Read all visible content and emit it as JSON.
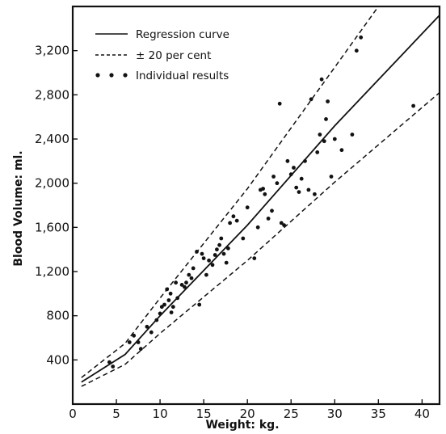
{
  "chart_data": {
    "type": "scatter",
    "title": "",
    "xlabel": "Weight: kg.",
    "ylabel": "Blood Volume: ml.",
    "xlim": [
      0,
      42
    ],
    "ylim": [
      0,
      3600
    ],
    "x_ticks": [
      0,
      5,
      10,
      15,
      20,
      25,
      30,
      35,
      40
    ],
    "x_tick_labels": [
      "0",
      "5",
      "10",
      "15",
      "20",
      "25",
      "30",
      "35",
      "40"
    ],
    "y_ticks": [
      400,
      800,
      1200,
      1600,
      2000,
      2400,
      2800,
      3200
    ],
    "y_tick_labels": [
      "400",
      "800",
      "1,200",
      "1,600",
      "2,000",
      "2,400",
      "2,800",
      "3,200"
    ],
    "grid": false,
    "legend_position": "top-left",
    "series": [
      {
        "name": "Regression curve",
        "style": "solid",
        "x": [
          1,
          6,
          10,
          20,
          30,
          42
        ],
        "y": [
          200,
          450,
          800,
          1620,
          2520,
          3520
        ]
      },
      {
        "name": "± 20 per cent",
        "style": "dashed",
        "x": [
          1,
          6,
          10,
          20,
          30,
          35
        ],
        "y": [
          240,
          550,
          960,
          1950,
          3050,
          3600
        ]
      },
      {
        "name": "± 20 per cent (lower)",
        "style": "dashed",
        "x": [
          1,
          6,
          10,
          20,
          30,
          42
        ],
        "y": [
          160,
          360,
          640,
          1300,
          2010,
          2820
        ]
      },
      {
        "name": "Individual results",
        "style": "points",
        "x": [
          4.2,
          4.6,
          6.5,
          7.0,
          7.5,
          7.8,
          8.5,
          9.0,
          9.6,
          10.0,
          10.2,
          10.5,
          10.8,
          11.0,
          11.2,
          11.3,
          11.5,
          11.8,
          12.0,
          12.5,
          12.8,
          13.0,
          13.3,
          13.6,
          13.8,
          14.2,
          14.5,
          14.8,
          15.0,
          15.3,
          15.6,
          16.0,
          16.3,
          16.5,
          16.8,
          17.0,
          17.3,
          17.6,
          17.8,
          18.0,
          18.4,
          18.8,
          19.5,
          20.0,
          20.8,
          21.2,
          21.5,
          21.8,
          22.0,
          22.4,
          22.8,
          23.0,
          23.4,
          23.7,
          23.9,
          24.2,
          24.6,
          25.0,
          25.3,
          25.6,
          25.9,
          26.2,
          26.6,
          27.0,
          27.3,
          27.7,
          28.0,
          28.3,
          28.5,
          28.8,
          29.0,
          29.2,
          29.6,
          30.0,
          30.8,
          32.0,
          32.5,
          33.0,
          39.0
        ],
        "y": [
          380,
          340,
          560,
          620,
          560,
          500,
          700,
          650,
          760,
          820,
          880,
          900,
          1040,
          940,
          1000,
          830,
          880,
          1100,
          960,
          1080,
          1060,
          1100,
          1170,
          1140,
          1230,
          1380,
          900,
          1360,
          1320,
          1170,
          1300,
          1260,
          1350,
          1400,
          1440,
          1500,
          1360,
          1280,
          1410,
          1640,
          1700,
          1660,
          1500,
          1780,
          1320,
          1600,
          1940,
          1950,
          1900,
          1680,
          1750,
          2060,
          2000,
          2720,
          1640,
          1620,
          2200,
          2080,
          2140,
          1960,
          1920,
          2040,
          2200,
          1940,
          2760,
          1900,
          2280,
          2440,
          2940,
          2380,
          2580,
          2740,
          2060,
          2400,
          2300,
          2440,
          3200,
          3320,
          2700
        ]
      }
    ]
  }
}
